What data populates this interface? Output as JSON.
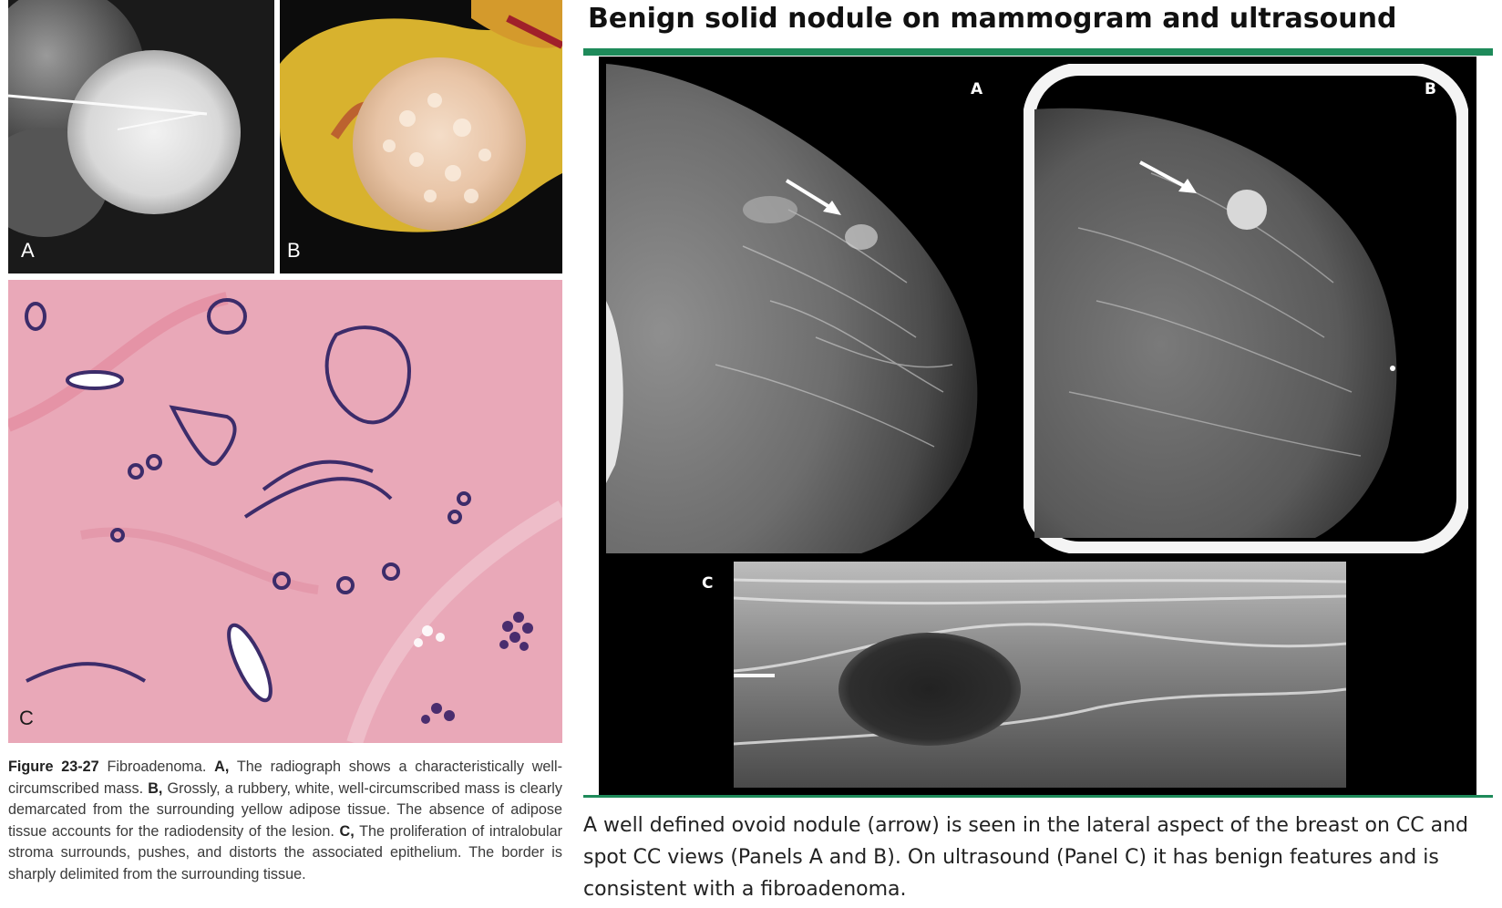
{
  "left": {
    "panels": [
      {
        "letter": "A"
      },
      {
        "letter": "B"
      },
      {
        "letter": "C"
      }
    ],
    "caption": {
      "figure_label": "Figure 23-27",
      "lead": " Fibroadenoma. ",
      "a_label": "A,",
      "a_text": " The radiograph shows a characteristically well-circumscribed mass. ",
      "b_label": "B,",
      "b_text": " Grossly, a rubbery, white, well-circumscribed mass is clearly demarcated from the surrounding yellow adipose tissue. The absence of adipose tissue accounts for the radiodensity of the lesion. ",
      "c_label": "C,",
      "c_text": " The proliferation of intralobular stroma surrounds, pushes, and distorts the associated epithelium. The border is sharply delimited from the surrounding tissue."
    }
  },
  "right": {
    "title": "Benign solid nodule on mammogram and ultrasound",
    "panels": [
      {
        "letter": "A"
      },
      {
        "letter": "B"
      },
      {
        "letter": "C"
      }
    ],
    "caption": "A well defined ovoid nodule (arrow) is seen in the lateral aspect of the breast on CC and spot CC views (Panels A and B). On ultrasound (Panel C) it has benign features and is consistent with a fibroadenoma.",
    "accent_color": "#1e8a5a"
  }
}
